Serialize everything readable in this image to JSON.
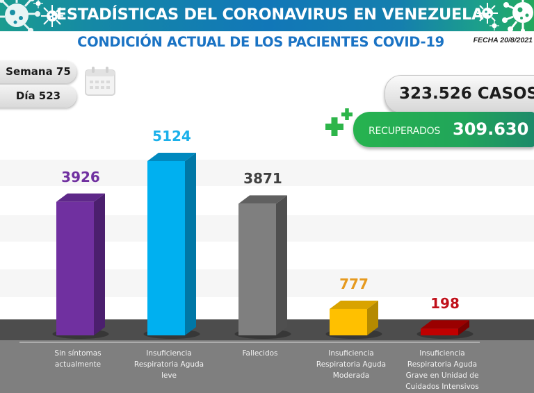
{
  "header": {
    "title": "ESTADÍSTICAS DEL CORONAVIRUS EN VENEZUELA",
    "subtitle": "CONDICIÓN ACTUAL DE LOS PACIENTES COVID-19",
    "date": "FECHA 20/8/2021",
    "icons": [
      "virus-icon",
      "virus-icon",
      "virus-icon",
      "virus-icon"
    ]
  },
  "period": {
    "week_label": "Semana 75",
    "day_label": "Día 523",
    "icon": "calendar-icon"
  },
  "totals": {
    "cases_label": "323.526 CASOS",
    "recovered_label": "RECUPERADOS",
    "recovered_value": "309.630",
    "icon": "plus-icon"
  },
  "colors": {
    "header_blue": "#1177b8",
    "header_teal": "#1b9c8f",
    "subtitle_blue": "#1a73c4",
    "recovered_green": "#27b34f",
    "floor_dark": "#4d4d4d",
    "label_area": "#7f7f7f"
  },
  "chart_data": {
    "type": "bar",
    "style": "3d-column",
    "title": "",
    "xlabel": "",
    "ylabel": "",
    "grid": false,
    "legend": "none",
    "ylim": [
      0,
      5600
    ],
    "categories": [
      "Sin síntomas actualmente",
      "Insuficiencia Respiratoria Aguda leve",
      "Fallecidos",
      "Insuficiencia Respiratoria Aguda Moderada",
      "Insuficiencia Respiratoria Aguda Grave en Unidad de Cuidados Intensivos"
    ],
    "category_lines": [
      [
        "Sin síntomas",
        "actualmente"
      ],
      [
        "Insuficiencia",
        "Respiratoria Aguda",
        "leve"
      ],
      [
        "Fallecidos"
      ],
      [
        "Insuficiencia",
        "Respiratoria Aguda",
        "Moderada"
      ],
      [
        "Insuficiencia",
        "Respiratoria Aguda",
        "Grave en Unidad de",
        "Cuidados Intensivos"
      ]
    ],
    "values": [
      3926,
      5124,
      3871,
      777,
      198
    ],
    "data_labels": [
      "3926",
      "5124",
      "3871",
      "777",
      "198"
    ],
    "bar_colors": [
      {
        "front": "#7030a0",
        "side": "#4b1f6e",
        "top": "#5e2889",
        "label": "#7030a0"
      },
      {
        "front": "#00b0f0",
        "side": "#0077a6",
        "top": "#0089bf",
        "label": "#1ab0ea"
      },
      {
        "front": "#7f7f7f",
        "side": "#4f4f4f",
        "top": "#606060",
        "label": "#404040"
      },
      {
        "front": "#ffc000",
        "side": "#b58a00",
        "top": "#d9a300",
        "label": "#e69a1f"
      },
      {
        "front": "#c00000",
        "side": "#7a0000",
        "top": "#9a0000",
        "label": "#c0101a"
      }
    ]
  }
}
